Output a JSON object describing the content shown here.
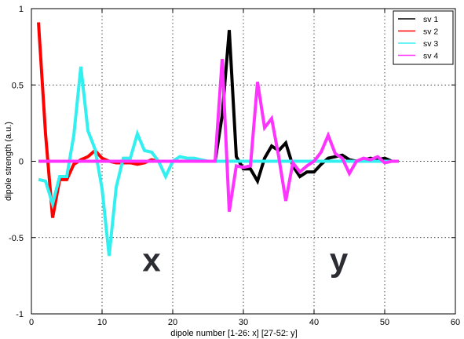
{
  "chart_data": {
    "type": "line",
    "title": "",
    "xlabel": "dipole number [1-26: x] [27-52: y]",
    "ylabel": "dipole strength (a.u.)",
    "xlim": [
      0,
      60
    ],
    "ylim": [
      -1,
      1
    ],
    "xticks": [
      0,
      10,
      20,
      30,
      40,
      50,
      60
    ],
    "yticks": [
      -1,
      -0.5,
      0,
      0.5,
      1
    ],
    "xtick_labels": [
      "0",
      "10",
      "20",
      "30",
      "40",
      "50",
      "60"
    ],
    "ytick_labels": [
      "-1",
      "-0.5",
      "0",
      "0.5",
      "1"
    ],
    "grid": true,
    "legend_position": "top-right",
    "annotations": [
      {
        "text": "x",
        "x": 17,
        "y": -0.72
      },
      {
        "text": "y",
        "x": 43.5,
        "y": -0.72
      }
    ],
    "series": [
      {
        "name": "sv 1",
        "color": "#000000",
        "x": [
          1,
          2,
          3,
          4,
          5,
          6,
          7,
          8,
          9,
          10,
          11,
          12,
          13,
          14,
          15,
          16,
          17,
          18,
          19,
          20,
          21,
          22,
          23,
          24,
          25,
          26,
          27,
          28,
          29,
          30,
          31,
          32,
          33,
          34,
          35,
          36,
          37,
          38,
          39,
          40,
          41,
          42,
          43,
          44,
          45,
          46,
          47,
          48,
          49,
          50,
          51,
          52
        ],
        "y": [
          0,
          0,
          0,
          0,
          0,
          0,
          0,
          0,
          0,
          0,
          0,
          0,
          0,
          0,
          0,
          0,
          0,
          0,
          0,
          0,
          0,
          0,
          0,
          0,
          0,
          0,
          0.3,
          0.86,
          0.03,
          -0.05,
          -0.05,
          -0.13,
          0.02,
          0.1,
          0.07,
          0.12,
          -0.03,
          -0.1,
          -0.07,
          -0.07,
          -0.02,
          0.02,
          0.03,
          0.04,
          0.01,
          0,
          0.01,
          0.02,
          0.01,
          0.02,
          0,
          0
        ]
      },
      {
        "name": "sv 2",
        "color": "#ff0000",
        "x": [
          1,
          2,
          3,
          4,
          5,
          6,
          7,
          8,
          9,
          10,
          11,
          12,
          13,
          14,
          15,
          16,
          17,
          18,
          19,
          20,
          21,
          22,
          23,
          24,
          25,
          26,
          27,
          28,
          29,
          30,
          31,
          32,
          33,
          34,
          35,
          36,
          37,
          38,
          39,
          40,
          41,
          42,
          43,
          44,
          45,
          46,
          47,
          48,
          49,
          50,
          51,
          52
        ],
        "y": [
          0.91,
          0.18,
          -0.37,
          -0.12,
          -0.12,
          -0.02,
          0.01,
          0.03,
          0.07,
          0.02,
          0,
          -0.01,
          -0.01,
          -0.01,
          -0.02,
          -0.01,
          0.01,
          0,
          0,
          0,
          0,
          0,
          0,
          0,
          0,
          0,
          0,
          0,
          0,
          0,
          0,
          0,
          0,
          0,
          0,
          0,
          0,
          0,
          0,
          0,
          0,
          0,
          0,
          0,
          0,
          0,
          0,
          0,
          0,
          0,
          0,
          0
        ]
      },
      {
        "name": "sv 3",
        "color": "#33f0f0",
        "x": [
          1,
          2,
          3,
          4,
          5,
          6,
          7,
          8,
          9,
          10,
          11,
          12,
          13,
          14,
          15,
          16,
          17,
          18,
          19,
          20,
          21,
          22,
          23,
          24,
          25,
          26,
          27,
          28,
          29,
          30,
          31,
          32,
          33,
          34,
          35,
          36,
          37,
          38,
          39,
          40,
          41,
          42,
          43,
          44,
          45,
          46,
          47,
          48,
          49,
          50,
          51,
          52
        ],
        "y": [
          -0.12,
          -0.13,
          -0.28,
          -0.1,
          -0.1,
          0.17,
          0.62,
          0.2,
          0.08,
          -0.18,
          -0.62,
          -0.17,
          0.02,
          0.02,
          0.18,
          0.07,
          0.06,
          0,
          -0.1,
          0,
          0.03,
          0.02,
          0.02,
          0.01,
          0,
          0,
          0,
          0,
          0,
          0,
          0,
          0,
          0,
          0,
          0,
          0,
          0,
          0,
          0,
          0,
          0,
          0,
          0,
          0,
          0,
          0,
          0,
          0,
          0,
          0,
          0,
          0
        ]
      },
      {
        "name": "sv 4",
        "color": "#ff33ff",
        "x": [
          1,
          2,
          3,
          4,
          5,
          6,
          7,
          8,
          9,
          10,
          11,
          12,
          13,
          14,
          15,
          16,
          17,
          18,
          19,
          20,
          21,
          22,
          23,
          24,
          25,
          26,
          27,
          28,
          29,
          30,
          31,
          32,
          33,
          34,
          35,
          36,
          37,
          38,
          39,
          40,
          41,
          42,
          43,
          44,
          45,
          46,
          47,
          48,
          49,
          50,
          51,
          52
        ],
        "y": [
          0,
          0,
          0,
          0,
          0,
          0,
          0,
          0,
          0,
          0,
          0,
          0,
          0,
          0,
          0,
          0,
          0,
          0,
          0,
          0,
          0,
          0,
          0,
          0,
          0,
          0,
          0.67,
          -0.33,
          -0.03,
          -0.04,
          -0.03,
          0.52,
          0.22,
          0.28,
          0.03,
          -0.26,
          -0.01,
          -0.07,
          -0.03,
          0,
          0.06,
          0.17,
          0.05,
          0.02,
          -0.08,
          0,
          0.02,
          0.01,
          0.03,
          -0.01,
          0,
          0
        ]
      }
    ]
  }
}
